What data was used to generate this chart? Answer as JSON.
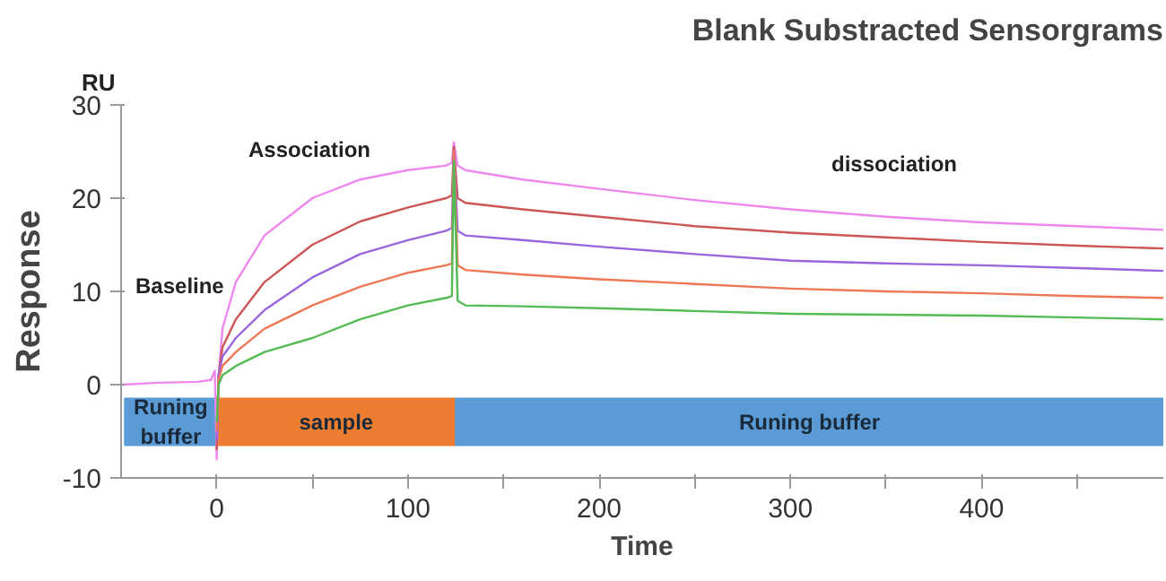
{
  "chart_data": {
    "type": "line",
    "title": "Blank Substracted Sensorgrams",
    "xlabel": "Time",
    "ylabel": "Response",
    "annotations": [
      "RU",
      "Baseline",
      "Association",
      "dissociation"
    ],
    "x": [
      -50,
      -30,
      -10,
      -3,
      -1,
      0,
      1,
      3,
      10,
      25,
      50,
      75,
      100,
      120,
      123,
      124,
      126,
      130,
      160,
      200,
      250,
      300,
      350,
      400,
      450,
      495
    ],
    "series": [
      {
        "color": "#ee88ee",
        "values": [
          0,
          0.2,
          0.3,
          0.5,
          1.5,
          -8,
          1,
          6,
          11,
          16,
          20,
          22,
          23,
          23.5,
          23.8,
          26,
          23.5,
          23,
          22,
          21,
          19.8,
          18.8,
          18,
          17.4,
          17,
          16.6
        ]
      },
      {
        "color": "#cc5555",
        "values": [
          null,
          null,
          null,
          null,
          null,
          -7,
          1,
          4,
          7,
          11,
          15,
          17.5,
          19,
          20,
          20.3,
          25.5,
          20,
          19.5,
          18.8,
          18,
          17,
          16.3,
          15.8,
          15.3,
          14.9,
          14.6
        ]
      },
      {
        "color": "#9966dd",
        "values": [
          null,
          null,
          null,
          null,
          null,
          -6,
          1,
          3,
          5,
          8,
          11.5,
          14,
          15.5,
          16.5,
          16.8,
          25,
          16.5,
          16,
          15.5,
          14.8,
          14,
          13.3,
          13,
          12.8,
          12.5,
          12.2
        ]
      },
      {
        "color": "#ee7755",
        "values": [
          null,
          null,
          null,
          null,
          null,
          -5,
          0.5,
          2,
          3.5,
          6,
          8.5,
          10.5,
          12,
          12.8,
          13,
          25,
          12.8,
          12.3,
          11.8,
          11.3,
          10.8,
          10.3,
          10,
          9.8,
          9.5,
          9.3
        ]
      },
      {
        "color": "#55bb55",
        "values": [
          null,
          null,
          null,
          null,
          null,
          -4,
          0,
          1,
          2,
          3.5,
          5,
          7,
          8.5,
          9.3,
          9.5,
          24,
          9,
          8.5,
          8.4,
          8.2,
          7.9,
          7.6,
          7.5,
          7.4,
          7.2,
          7.0
        ]
      }
    ],
    "bands": [
      {
        "axis": "x",
        "from": -48,
        "to": 0,
        "label": "Runing\nbuffer",
        "color": "#5b9bd5"
      },
      {
        "axis": "x",
        "from": 0,
        "to": 125,
        "label": "sample",
        "color": "#ed7d31"
      },
      {
        "axis": "x",
        "from": 125,
        "to": 495,
        "label": "Runing buffer",
        "color": "#5b9bd5"
      }
    ],
    "xlim": [
      -50,
      495
    ],
    "ylim": [
      -10,
      30
    ],
    "xticks": [
      0,
      100,
      200,
      300,
      400,
      {
        "value": 50,
        "label": null
      },
      {
        "value": 150,
        "label": null
      },
      {
        "value": 250,
        "label": null
      },
      {
        "value": 350,
        "label": null
      },
      {
        "value": 450,
        "label": null
      }
    ],
    "yticks": [
      -10,
      0,
      10,
      20,
      30
    ],
    "grid": false,
    "marker": "none",
    "line_style": "solid"
  }
}
